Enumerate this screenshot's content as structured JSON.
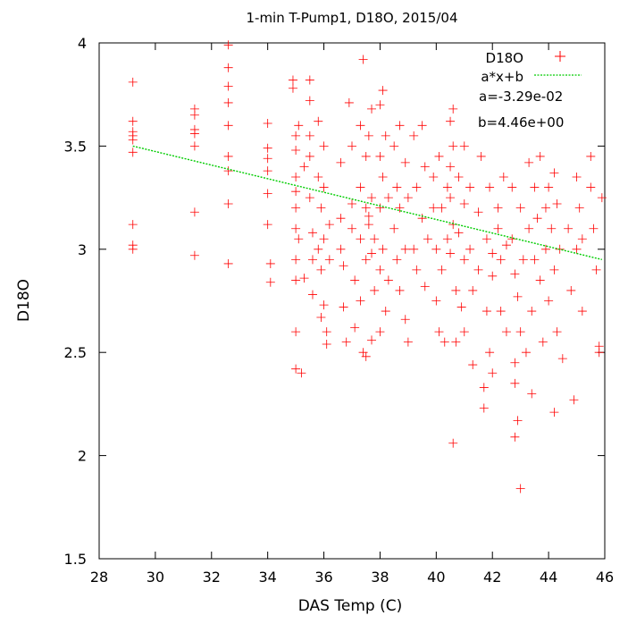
{
  "chart_data": {
    "type": "scatter",
    "title": "1-min T-Pump1, D18O, 2015/04",
    "xlabel": "DAS Temp (C)",
    "ylabel": "D18O",
    "xlim": [
      28,
      46
    ],
    "ylim": [
      1.5,
      4
    ],
    "xticks": [
      28,
      30,
      32,
      34,
      36,
      38,
      40,
      42,
      44,
      46
    ],
    "yticks": [
      1.5,
      2,
      2.5,
      3,
      3.5,
      4
    ],
    "grid": false,
    "legend_position": "top-right",
    "series": [
      {
        "name": "D18O",
        "kind": "points",
        "marker": "+",
        "color": "#ff0000",
        "points": [
          [
            29.2,
            3.81
          ],
          [
            29.2,
            3.62
          ],
          [
            29.2,
            3.57
          ],
          [
            29.2,
            3.55
          ],
          [
            29.2,
            3.53
          ],
          [
            29.2,
            3.47
          ],
          [
            29.2,
            3.12
          ],
          [
            29.2,
            3.02
          ],
          [
            29.2,
            3.0
          ],
          [
            31.4,
            3.68
          ],
          [
            31.4,
            3.65
          ],
          [
            31.4,
            3.58
          ],
          [
            31.4,
            3.56
          ],
          [
            31.4,
            3.5
          ],
          [
            31.4,
            3.18
          ],
          [
            31.4,
            2.97
          ],
          [
            32.6,
            3.99
          ],
          [
            32.6,
            3.88
          ],
          [
            32.6,
            3.79
          ],
          [
            32.6,
            3.71
          ],
          [
            32.6,
            3.6
          ],
          [
            32.6,
            3.45
          ],
          [
            32.6,
            3.38
          ],
          [
            32.6,
            3.22
          ],
          [
            32.6,
            2.93
          ],
          [
            34.0,
            3.61
          ],
          [
            34.0,
            3.49
          ],
          [
            34.0,
            3.44
          ],
          [
            34.0,
            3.38
          ],
          [
            34.0,
            3.27
          ],
          [
            34.0,
            3.12
          ],
          [
            34.1,
            2.93
          ],
          [
            34.1,
            2.84
          ],
          [
            34.9,
            3.82
          ],
          [
            34.9,
            3.78
          ],
          [
            35.0,
            3.55
          ],
          [
            35.0,
            3.48
          ],
          [
            35.0,
            3.35
          ],
          [
            35.0,
            3.28
          ],
          [
            35.0,
            3.2
          ],
          [
            35.0,
            3.1
          ],
          [
            35.0,
            2.95
          ],
          [
            35.0,
            2.85
          ],
          [
            35.0,
            2.6
          ],
          [
            35.0,
            2.42
          ],
          [
            35.1,
            3.6
          ],
          [
            35.1,
            3.05
          ],
          [
            35.2,
            2.4
          ],
          [
            35.3,
            2.86
          ],
          [
            35.3,
            3.4
          ],
          [
            35.5,
            3.82
          ],
          [
            35.5,
            3.72
          ],
          [
            35.5,
            3.55
          ],
          [
            35.5,
            3.45
          ],
          [
            35.5,
            3.25
          ],
          [
            35.6,
            3.08
          ],
          [
            35.6,
            2.95
          ],
          [
            35.6,
            2.78
          ],
          [
            35.8,
            3.62
          ],
          [
            35.8,
            3.35
          ],
          [
            35.8,
            3.0
          ],
          [
            35.9,
            3.2
          ],
          [
            35.9,
            2.9
          ],
          [
            35.9,
            2.67
          ],
          [
            36.0,
            3.5
          ],
          [
            36.0,
            3.3
          ],
          [
            36.0,
            3.05
          ],
          [
            36.0,
            2.73
          ],
          [
            36.1,
            2.6
          ],
          [
            36.1,
            2.54
          ],
          [
            36.2,
            3.12
          ],
          [
            36.2,
            2.95
          ],
          [
            36.6,
            3.42
          ],
          [
            36.6,
            3.15
          ],
          [
            36.6,
            3.0
          ],
          [
            36.7,
            2.92
          ],
          [
            36.7,
            2.72
          ],
          [
            36.8,
            2.55
          ],
          [
            36.9,
            3.71
          ],
          [
            37.0,
            3.5
          ],
          [
            37.0,
            3.22
          ],
          [
            37.0,
            3.1
          ],
          [
            37.1,
            2.85
          ],
          [
            37.1,
            2.62
          ],
          [
            37.3,
            3.6
          ],
          [
            37.3,
            3.3
          ],
          [
            37.3,
            3.05
          ],
          [
            37.3,
            2.75
          ],
          [
            37.4,
            3.92
          ],
          [
            37.4,
            2.5
          ],
          [
            37.5,
            3.45
          ],
          [
            37.5,
            3.2
          ],
          [
            37.5,
            2.95
          ],
          [
            37.5,
            2.48
          ],
          [
            37.6,
            3.55
          ],
          [
            37.6,
            3.16
          ],
          [
            37.6,
            3.12
          ],
          [
            37.7,
            3.68
          ],
          [
            37.7,
            3.25
          ],
          [
            37.7,
            2.56
          ],
          [
            37.7,
            2.98
          ],
          [
            37.8,
            3.05
          ],
          [
            37.8,
            2.8
          ],
          [
            38.0,
            3.7
          ],
          [
            38.0,
            3.45
          ],
          [
            38.0,
            3.2
          ],
          [
            38.0,
            2.9
          ],
          [
            38.0,
            2.6
          ],
          [
            38.1,
            3.77
          ],
          [
            38.1,
            3.35
          ],
          [
            38.1,
            3.0
          ],
          [
            38.2,
            2.7
          ],
          [
            38.2,
            3.55
          ],
          [
            38.3,
            3.25
          ],
          [
            38.3,
            2.85
          ],
          [
            38.5,
            3.5
          ],
          [
            38.5,
            3.1
          ],
          [
            38.6,
            3.3
          ],
          [
            38.6,
            2.95
          ],
          [
            38.7,
            3.6
          ],
          [
            38.7,
            3.2
          ],
          [
            38.7,
            2.8
          ],
          [
            38.9,
            3.42
          ],
          [
            38.9,
            3.0
          ],
          [
            38.9,
            2.66
          ],
          [
            39.0,
            3.25
          ],
          [
            39.0,
            2.55
          ],
          [
            39.2,
            3.55
          ],
          [
            39.2,
            3.0
          ],
          [
            39.3,
            3.3
          ],
          [
            39.3,
            2.9
          ],
          [
            39.5,
            3.6
          ],
          [
            39.5,
            3.15
          ],
          [
            39.6,
            2.82
          ],
          [
            39.6,
            3.4
          ],
          [
            39.7,
            3.05
          ],
          [
            39.9,
            3.35
          ],
          [
            39.9,
            3.2
          ],
          [
            40.0,
            3.0
          ],
          [
            40.0,
            2.75
          ],
          [
            40.1,
            3.45
          ],
          [
            40.1,
            2.6
          ],
          [
            40.2,
            3.2
          ],
          [
            40.2,
            2.9
          ],
          [
            40.3,
            2.55
          ],
          [
            40.4,
            3.3
          ],
          [
            40.4,
            3.05
          ],
          [
            40.5,
            3.62
          ],
          [
            40.5,
            3.4
          ],
          [
            40.5,
            3.25
          ],
          [
            40.5,
            2.98
          ],
          [
            40.6,
            3.68
          ],
          [
            40.6,
            3.5
          ],
          [
            40.6,
            3.12
          ],
          [
            40.6,
            2.06
          ],
          [
            40.7,
            2.8
          ],
          [
            40.7,
            2.55
          ],
          [
            40.8,
            3.35
          ],
          [
            40.8,
            3.08
          ],
          [
            40.9,
            2.72
          ],
          [
            41.0,
            3.5
          ],
          [
            41.0,
            3.22
          ],
          [
            41.0,
            2.95
          ],
          [
            41.0,
            2.6
          ],
          [
            41.2,
            3.3
          ],
          [
            41.2,
            3.0
          ],
          [
            41.3,
            2.8
          ],
          [
            41.3,
            2.44
          ],
          [
            41.5,
            3.18
          ],
          [
            41.5,
            2.9
          ],
          [
            41.6,
            3.45
          ],
          [
            41.7,
            2.33
          ],
          [
            41.7,
            2.23
          ],
          [
            41.8,
            3.05
          ],
          [
            41.8,
            2.7
          ],
          [
            41.9,
            3.3
          ],
          [
            41.9,
            2.5
          ],
          [
            42.0,
            2.87
          ],
          [
            42.0,
            2.98
          ],
          [
            42.0,
            2.4
          ],
          [
            42.2,
            3.2
          ],
          [
            42.2,
            3.1
          ],
          [
            42.3,
            2.7
          ],
          [
            42.3,
            2.95
          ],
          [
            42.4,
            3.35
          ],
          [
            42.5,
            3.02
          ],
          [
            42.5,
            2.6
          ],
          [
            42.7,
            3.3
          ],
          [
            42.7,
            3.05
          ],
          [
            42.8,
            2.88
          ],
          [
            42.8,
            2.45
          ],
          [
            42.8,
            2.35
          ],
          [
            42.8,
            2.09
          ],
          [
            42.9,
            2.17
          ],
          [
            42.9,
            2.77
          ],
          [
            43.0,
            3.2
          ],
          [
            43.0,
            2.6
          ],
          [
            43.0,
            1.84
          ],
          [
            43.1,
            2.95
          ],
          [
            43.2,
            2.5
          ],
          [
            43.3,
            3.42
          ],
          [
            43.3,
            3.1
          ],
          [
            43.4,
            2.7
          ],
          [
            43.4,
            2.3
          ],
          [
            43.5,
            3.3
          ],
          [
            43.5,
            2.95
          ],
          [
            43.6,
            3.15
          ],
          [
            43.7,
            3.45
          ],
          [
            43.7,
            2.85
          ],
          [
            43.8,
            2.55
          ],
          [
            43.9,
            3.2
          ],
          [
            43.9,
            3.0
          ],
          [
            44.0,
            3.3
          ],
          [
            44.0,
            2.75
          ],
          [
            44.1,
            3.1
          ],
          [
            44.2,
            2.9
          ],
          [
            44.2,
            2.21
          ],
          [
            44.2,
            3.37
          ],
          [
            44.3,
            2.6
          ],
          [
            44.3,
            3.22
          ],
          [
            44.4,
            3.0
          ],
          [
            44.5,
            2.47
          ],
          [
            44.7,
            3.1
          ],
          [
            44.8,
            2.8
          ],
          [
            44.9,
            2.27
          ],
          [
            45.0,
            3.35
          ],
          [
            45.0,
            3.0
          ],
          [
            45.1,
            3.2
          ],
          [
            45.2,
            2.7
          ],
          [
            45.2,
            3.05
          ],
          [
            45.5,
            3.45
          ],
          [
            45.5,
            3.3
          ],
          [
            45.6,
            3.1
          ],
          [
            45.7,
            2.9
          ],
          [
            45.8,
            2.53
          ],
          [
            45.8,
            2.5
          ],
          [
            45.9,
            3.25
          ]
        ]
      },
      {
        "name": "a*x+b",
        "kind": "line",
        "color": "#00cc00",
        "dashed": true,
        "x": [
          29.2,
          45.9
        ],
        "y": [
          3.5,
          2.95
        ]
      }
    ],
    "annotations": [
      "a=-3.29e-02",
      "b=4.46e+00"
    ]
  }
}
